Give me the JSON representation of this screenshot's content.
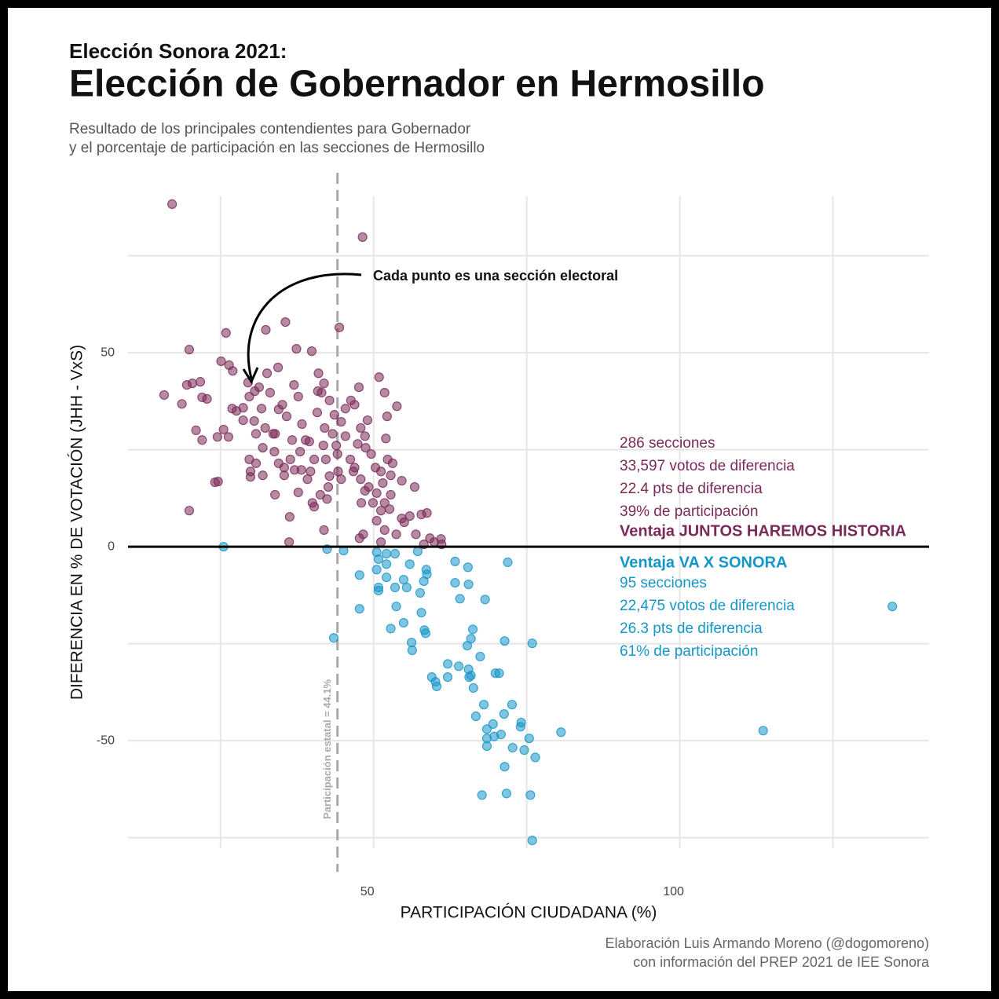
{
  "chart_data": {
    "type": "scatter",
    "supertitle": "Elección Sonora 2021:",
    "title": "Elección de Gobernador en Hermosillo",
    "subtitle": [
      "Resultado de los principales contendientes para Gobernador",
      "y el porcentaje de participación en las secciones de Hermosillo"
    ],
    "x_label": "PARTICIPACIÓN CIUDADANA (%)",
    "y_label": "DIFERENCIA EN % DE VOTACIÓN (JHH - VxS)",
    "caption": [
      "Elaboración Luis Armando Moreno (@dogomoreno)",
      "con información del PREP 2021 de IEE Sonora"
    ],
    "annotation": "Cada punto es una sección electoral",
    "reference_line": {
      "x": 44.1,
      "label": "Participación estatal = 44.1%"
    },
    "xlim": [
      9.9,
      140.7
    ],
    "ylim": [
      -77.7,
      90.3
    ],
    "xticks": [
      50,
      100
    ],
    "yticks": [
      -50,
      0,
      50
    ],
    "x_minor_grid": [
      25,
      75,
      125
    ],
    "y_minor_grid": [
      -75,
      -25,
      25,
      75
    ],
    "grid": true,
    "summaries": [
      {
        "color": "#7b2a57",
        "headline": "Ventaja JUNTOS HAREMOS HISTORIA",
        "lines": [
          "286 secciones",
          "33,597 votos de diferencia",
          "22.4 pts de diferencia",
          "39% de participación"
        ]
      },
      {
        "color": "#1596c8",
        "headline": "Ventaja VA X SONORA",
        "lines": [
          "95 secciones",
          "22,475 votos de diferencia",
          "26.3 pts de diferencia",
          "61% de participación"
        ]
      }
    ],
    "series": [
      {
        "color": "#7b2a57",
        "x": [
          17.1,
          48.2,
          15.8,
          19.9,
          25.9,
          35.6,
          32.4,
          44.4,
          37.4,
          39.9,
          25.1,
          26.4,
          27.0,
          34.4,
          18.7,
          19.5,
          20.4,
          21.7,
          22.0,
          22.8,
          21.0,
          19.9,
          22.0,
          24.1,
          24.6,
          25.5,
          26.3,
          24.5,
          26.9,
          27.6,
          28.7,
          29.5,
          29.7,
          30.6,
          31.3,
          32.6,
          33.1,
          30.5,
          30.8,
          29.9,
          29.9,
          29.7,
          30.8,
          31.9,
          31.9,
          32.3,
          33.6,
          33.9,
          33.9,
          34.5,
          35.4,
          35.4,
          36.3,
          36.2,
          35.1,
          35.8,
          37.0,
          37.7,
          38.3,
          38.9,
          38.0,
          37.1,
          37.7,
          39.2,
          40.0,
          40.3,
          40.8,
          41.5,
          40.9,
          41.0,
          42.0,
          41.8,
          42.2,
          42.8,
          41.9,
          42.4,
          43.6,
          43.3,
          44.1,
          44.2,
          44.7,
          44.7,
          45.4,
          46.3,
          47.6,
          46.9,
          47.9,
          48.6,
          47.4,
          46.2,
          46.7,
          47.9,
          48.6,
          48.0,
          47.7,
          48.3,
          50.9,
          51.8,
          52.2,
          52.0,
          52.3,
          51.2,
          51.5,
          50.5,
          51.8,
          51.2,
          50.5,
          51.8,
          51.2,
          53.8,
          53.1,
          52.8,
          52.6,
          53.7,
          54.6,
          54.6,
          55.9,
          56.7,
          56.9,
          57.8,
          58.7,
          58.2,
          59.9,
          61.0,
          61.1,
          59.2,
          49.6,
          49.0,
          41.9,
          42.8,
          39.5,
          40.3,
          36.7,
          34.5,
          31.7,
          28.7,
          46.9,
          49.2,
          49.9,
          45.4,
          43.9,
          42.6,
          41.3,
          39.7,
          38.2,
          36.4,
          33.8,
          48.7,
          50.3,
          52.8,
          55.0
        ],
        "values": [
          88.3,
          79.8,
          39.1,
          50.8,
          55.1,
          57.9,
          55.9,
          56.5,
          51.0,
          50.4,
          47.8,
          46.8,
          45.3,
          46.2,
          36.8,
          41.7,
          42.1,
          42.5,
          38.5,
          38.1,
          30.0,
          9.3,
          27.5,
          16.6,
          16.8,
          30.2,
          28.3,
          28.3,
          35.6,
          35.0,
          35.8,
          42.3,
          38.7,
          40.1,
          41.1,
          44.7,
          39.7,
          32.4,
          29.1,
          19.4,
          18.0,
          22.5,
          21.5,
          18.4,
          25.5,
          30.6,
          29.1,
          29.1,
          13.4,
          21.5,
          20.4,
          18.4,
          7.7,
          1.2,
          36.6,
          33.6,
          41.7,
          38.7,
          31.6,
          27.5,
          24.5,
          19.8,
          14.0,
          17.4,
          11.3,
          10.3,
          34.6,
          39.7,
          40.1,
          44.7,
          30.6,
          26.1,
          22.5,
          18.2,
          4.3,
          12.3,
          34.0,
          29.1,
          23.9,
          19.4,
          17.4,
          32.2,
          35.6,
          37.7,
          41.1,
          36.6,
          30.6,
          28.5,
          26.5,
          22.5,
          19.4,
          17.4,
          14.4,
          11.3,
          2.2,
          3.2,
          43.7,
          39.7,
          33.6,
          27.9,
          22.5,
          19.4,
          16.4,
          13.8,
          11.3,
          9.3,
          6.7,
          4.3,
          1.2,
          36.2,
          21.5,
          13.4,
          9.7,
          3.2,
          17.0,
          7.3,
          7.9,
          15.4,
          3.2,
          8.3,
          8.7,
          0.6,
          1.2,
          2.0,
          0.6,
          2.2,
          23.9,
          32.6,
          42.1,
          37.7,
          27.1,
          22.5,
          27.5,
          35.4,
          35.6,
          32.6,
          20.4,
          15.4,
          11.3,
          28.5,
          26.1,
          15.4,
          13.4,
          19.4,
          19.8,
          22.5,
          24.5,
          25.5,
          20.4,
          18.4,
          6.3
        ]
      },
      {
        "color": "#1596c8",
        "x": [
          25.5,
          42.4,
          45.1,
          43.5,
          47.7,
          47.7,
          50.5,
          50.8,
          50.5,
          50.8,
          50.8,
          52.1,
          52.1,
          52.1,
          52.8,
          53.5,
          53.7,
          53.5,
          54.9,
          54.9,
          55.4,
          55.9,
          56.2,
          56.3,
          57.2,
          57.6,
          57.8,
          58.2,
          58.3,
          58.5,
          58.6,
          58.7,
          59.5,
          60.1,
          60.3,
          62.1,
          62.1,
          63.3,
          63.3,
          63.9,
          64.1,
          65.4,
          65.5,
          65.3,
          65.5,
          65.6,
          65.9,
          65.9,
          66.2,
          66.3,
          66.7,
          67.4,
          67.7,
          68.0,
          68.2,
          68.5,
          68.5,
          68.5,
          69.5,
          69.7,
          69.9,
          70.5,
          70.8,
          71.3,
          71.4,
          71.4,
          71.7,
          71.9,
          72.6,
          72.7,
          74.0,
          74.1,
          74.6,
          75.4,
          75.6,
          75.9,
          75.9,
          76.4,
          80.6,
          113.6,
          134.7
        ],
        "values": [
          0,
          -0.6,
          -1.0,
          -23.5,
          -7.3,
          -16.0,
          -1.4,
          -3.2,
          -5.9,
          -10.5,
          -11.3,
          -1.8,
          -4.5,
          -7.9,
          -21.1,
          -10.5,
          -15.4,
          -1.8,
          -8.5,
          -19.6,
          -10.5,
          -4.5,
          -24.7,
          -26.7,
          -1.2,
          -11.9,
          -17.0,
          -8.9,
          -21.5,
          -22.3,
          -5.9,
          -7.1,
          -33.6,
          -34.8,
          -36.0,
          -30.2,
          -33.6,
          -3.8,
          -9.3,
          -30.8,
          -13.4,
          -5.3,
          -9.7,
          -25.5,
          -31.6,
          -33.6,
          -33.2,
          -23.7,
          -21.3,
          -36.4,
          -43.7,
          -28.3,
          -64.0,
          -40.7,
          -13.6,
          -47.0,
          -49.4,
          -51.4,
          -45.7,
          -48.9,
          -32.6,
          -32.6,
          -48.4,
          -43.1,
          -24.3,
          -56.7,
          -63.6,
          -4.0,
          -40.7,
          -51.8,
          -46.4,
          -45.3,
          -52.4,
          -49.4,
          -64.0,
          -24.9,
          -75.7,
          -54.3,
          -47.8,
          -47.4,
          -15.4
        ]
      }
    ]
  }
}
